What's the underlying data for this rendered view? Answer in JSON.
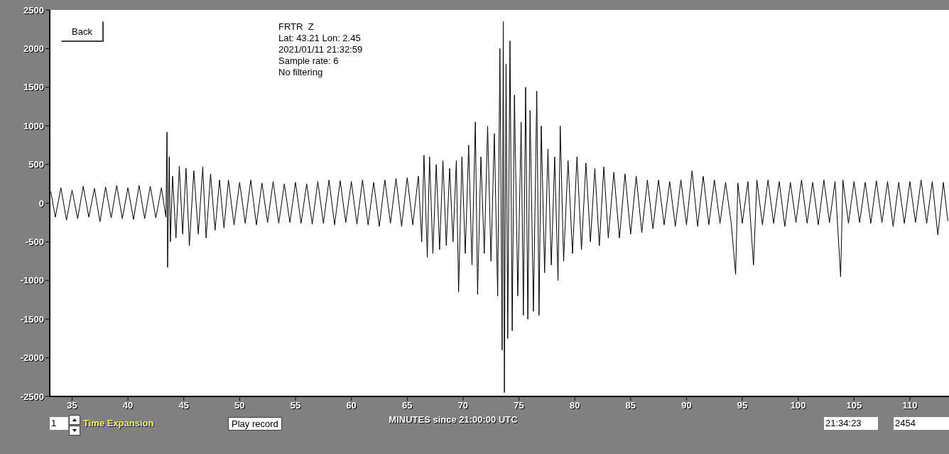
{
  "chart_data": {
    "type": "line",
    "xlabel": "MINUTES since 21:00:00 UTC",
    "annotations": [
      "FRTR  Z",
      "Lat: 43.21 Lon: 2.45",
      "2021/01/11 21:32:59",
      "Sample rate: 6",
      "No filtering",
      "Back",
      "1",
      "Time Expansion",
      "Play record",
      "21:34:23",
      "2454"
    ],
    "xlim": [
      33,
      113.5
    ],
    "xticks": [
      35,
      40,
      45,
      50,
      55,
      60,
      65,
      70,
      75,
      80,
      85,
      90,
      95,
      100,
      105,
      110
    ],
    "ylim": [
      -2500,
      2500
    ],
    "yticks": [
      -2500,
      -2000,
      -1500,
      -1000,
      -500,
      0,
      500,
      1000,
      1500,
      2000,
      2500
    ],
    "grid": false,
    "legend": false,
    "marker": "none",
    "line_style": "solid",
    "series": [
      {
        "color": "#000000",
        "x": [
          33.1,
          33.5,
          34,
          34.5,
          35,
          35.5,
          36,
          36.5,
          37,
          37.5,
          38,
          38.5,
          39,
          39.5,
          40,
          40.5,
          41,
          41.5,
          42,
          42.5,
          43,
          43.4,
          43.5,
          43.55,
          43.7,
          43.8,
          44,
          44.3,
          44.6,
          44.9,
          45.2,
          45.5,
          45.9,
          46.3,
          46.7,
          47,
          47.4,
          47.8,
          48.2,
          48.6,
          49,
          49.5,
          50,
          50.5,
          51,
          51.5,
          52,
          52.5,
          53,
          53.5,
          54,
          54.5,
          55,
          55.5,
          56,
          56.5,
          57,
          57.5,
          58,
          58.5,
          59,
          59.5,
          60,
          60.5,
          61,
          61.5,
          62,
          62.5,
          63,
          63.5,
          64,
          64.5,
          65,
          65.5,
          66,
          66.3,
          66.5,
          66.8,
          67,
          67.3,
          67.6,
          67.9,
          68.2,
          68.5,
          68.8,
          69.1,
          69.4,
          69.6,
          69.9,
          70.2,
          70.5,
          70.8,
          71.1,
          71.3,
          71.6,
          71.9,
          72.2,
          72.5,
          72.8,
          73.1,
          73.3,
          73.5,
          73.6,
          73.7,
          73.85,
          74,
          74.2,
          74.4,
          74.6,
          74.9,
          75.2,
          75.4,
          75.6,
          75.8,
          76,
          76.3,
          76.6,
          76.8,
          77,
          77.3,
          77.6,
          77.9,
          78.2,
          78.5,
          78.7,
          79,
          79.4,
          79.8,
          80.2,
          80.6,
          81,
          81.4,
          81.8,
          82.2,
          82.6,
          83,
          83.5,
          84,
          84.5,
          85,
          85.5,
          86,
          86.5,
          87,
          87.5,
          88,
          88.5,
          89,
          89.5,
          90,
          90.5,
          91,
          91.5,
          92,
          92.5,
          93,
          93.5,
          94,
          94.4,
          94.6,
          95,
          95.5,
          96,
          96.3,
          96.8,
          97.3,
          97.8,
          98.3,
          98.8,
          99.3,
          99.8,
          100.3,
          100.8,
          101.3,
          101.8,
          102.3,
          102.8,
          103.3,
          103.8,
          104,
          104.5,
          105,
          105.5,
          106,
          106.5,
          107,
          107.5,
          108,
          108.5,
          109,
          109.5,
          110,
          110.5,
          111,
          111.5,
          112,
          112.5,
          113,
          113.4
        ],
        "values": [
          150,
          -180,
          200,
          -220,
          170,
          -200,
          220,
          -180,
          190,
          -240,
          210,
          -190,
          230,
          -200,
          200,
          -210,
          230,
          -200,
          220,
          -190,
          200,
          -180,
          920,
          -830,
          600,
          -500,
          350,
          -450,
          480,
          -400,
          450,
          -550,
          420,
          -400,
          470,
          -450,
          380,
          -350,
          300,
          -320,
          300,
          -280,
          270,
          -260,
          300,
          -280,
          260,
          -250,
          280,
          -260,
          250,
          -250,
          270,
          -260,
          250,
          -270,
          280,
          -260,
          300,
          -280,
          290,
          -250,
          280,
          -270,
          300,
          -280,
          270,
          -300,
          300,
          -260,
          320,
          -300,
          330,
          -280,
          350,
          -500,
          620,
          -700,
          600,
          -650,
          500,
          -600,
          550,
          -550,
          450,
          -500,
          550,
          -1150,
          600,
          -650,
          750,
          -800,
          1050,
          -1180,
          600,
          -650,
          1000,
          -750,
          900,
          -1200,
          2000,
          -1900,
          2350,
          -2450,
          1800,
          -1750,
          2100,
          -1650,
          1400,
          -1200,
          1050,
          -1450,
          1500,
          -1500,
          1200,
          -1400,
          1450,
          -1450,
          1000,
          -900,
          700,
          -800,
          600,
          -1000,
          1000,
          -750,
          550,
          -650,
          600,
          -600,
          520,
          -500,
          450,
          -550,
          470,
          -450,
          400,
          -450,
          380,
          -400,
          350,
          -380,
          300,
          -330,
          300,
          -280,
          280,
          -300,
          300,
          -280,
          420,
          -300,
          350,
          -280,
          300,
          -260,
          270,
          -250,
          -920,
          260,
          -260,
          280,
          -800,
          300,
          -280,
          300,
          -260,
          280,
          -300,
          270,
          -250,
          300,
          -260,
          270,
          -280,
          300,
          -250,
          280,
          -950,
          300,
          -260,
          280,
          -250,
          270,
          -260,
          290,
          -250,
          280,
          -300,
          270,
          -260,
          280,
          -250,
          300,
          -260,
          280,
          -410,
          270,
          -230
        ]
      }
    ]
  }
}
